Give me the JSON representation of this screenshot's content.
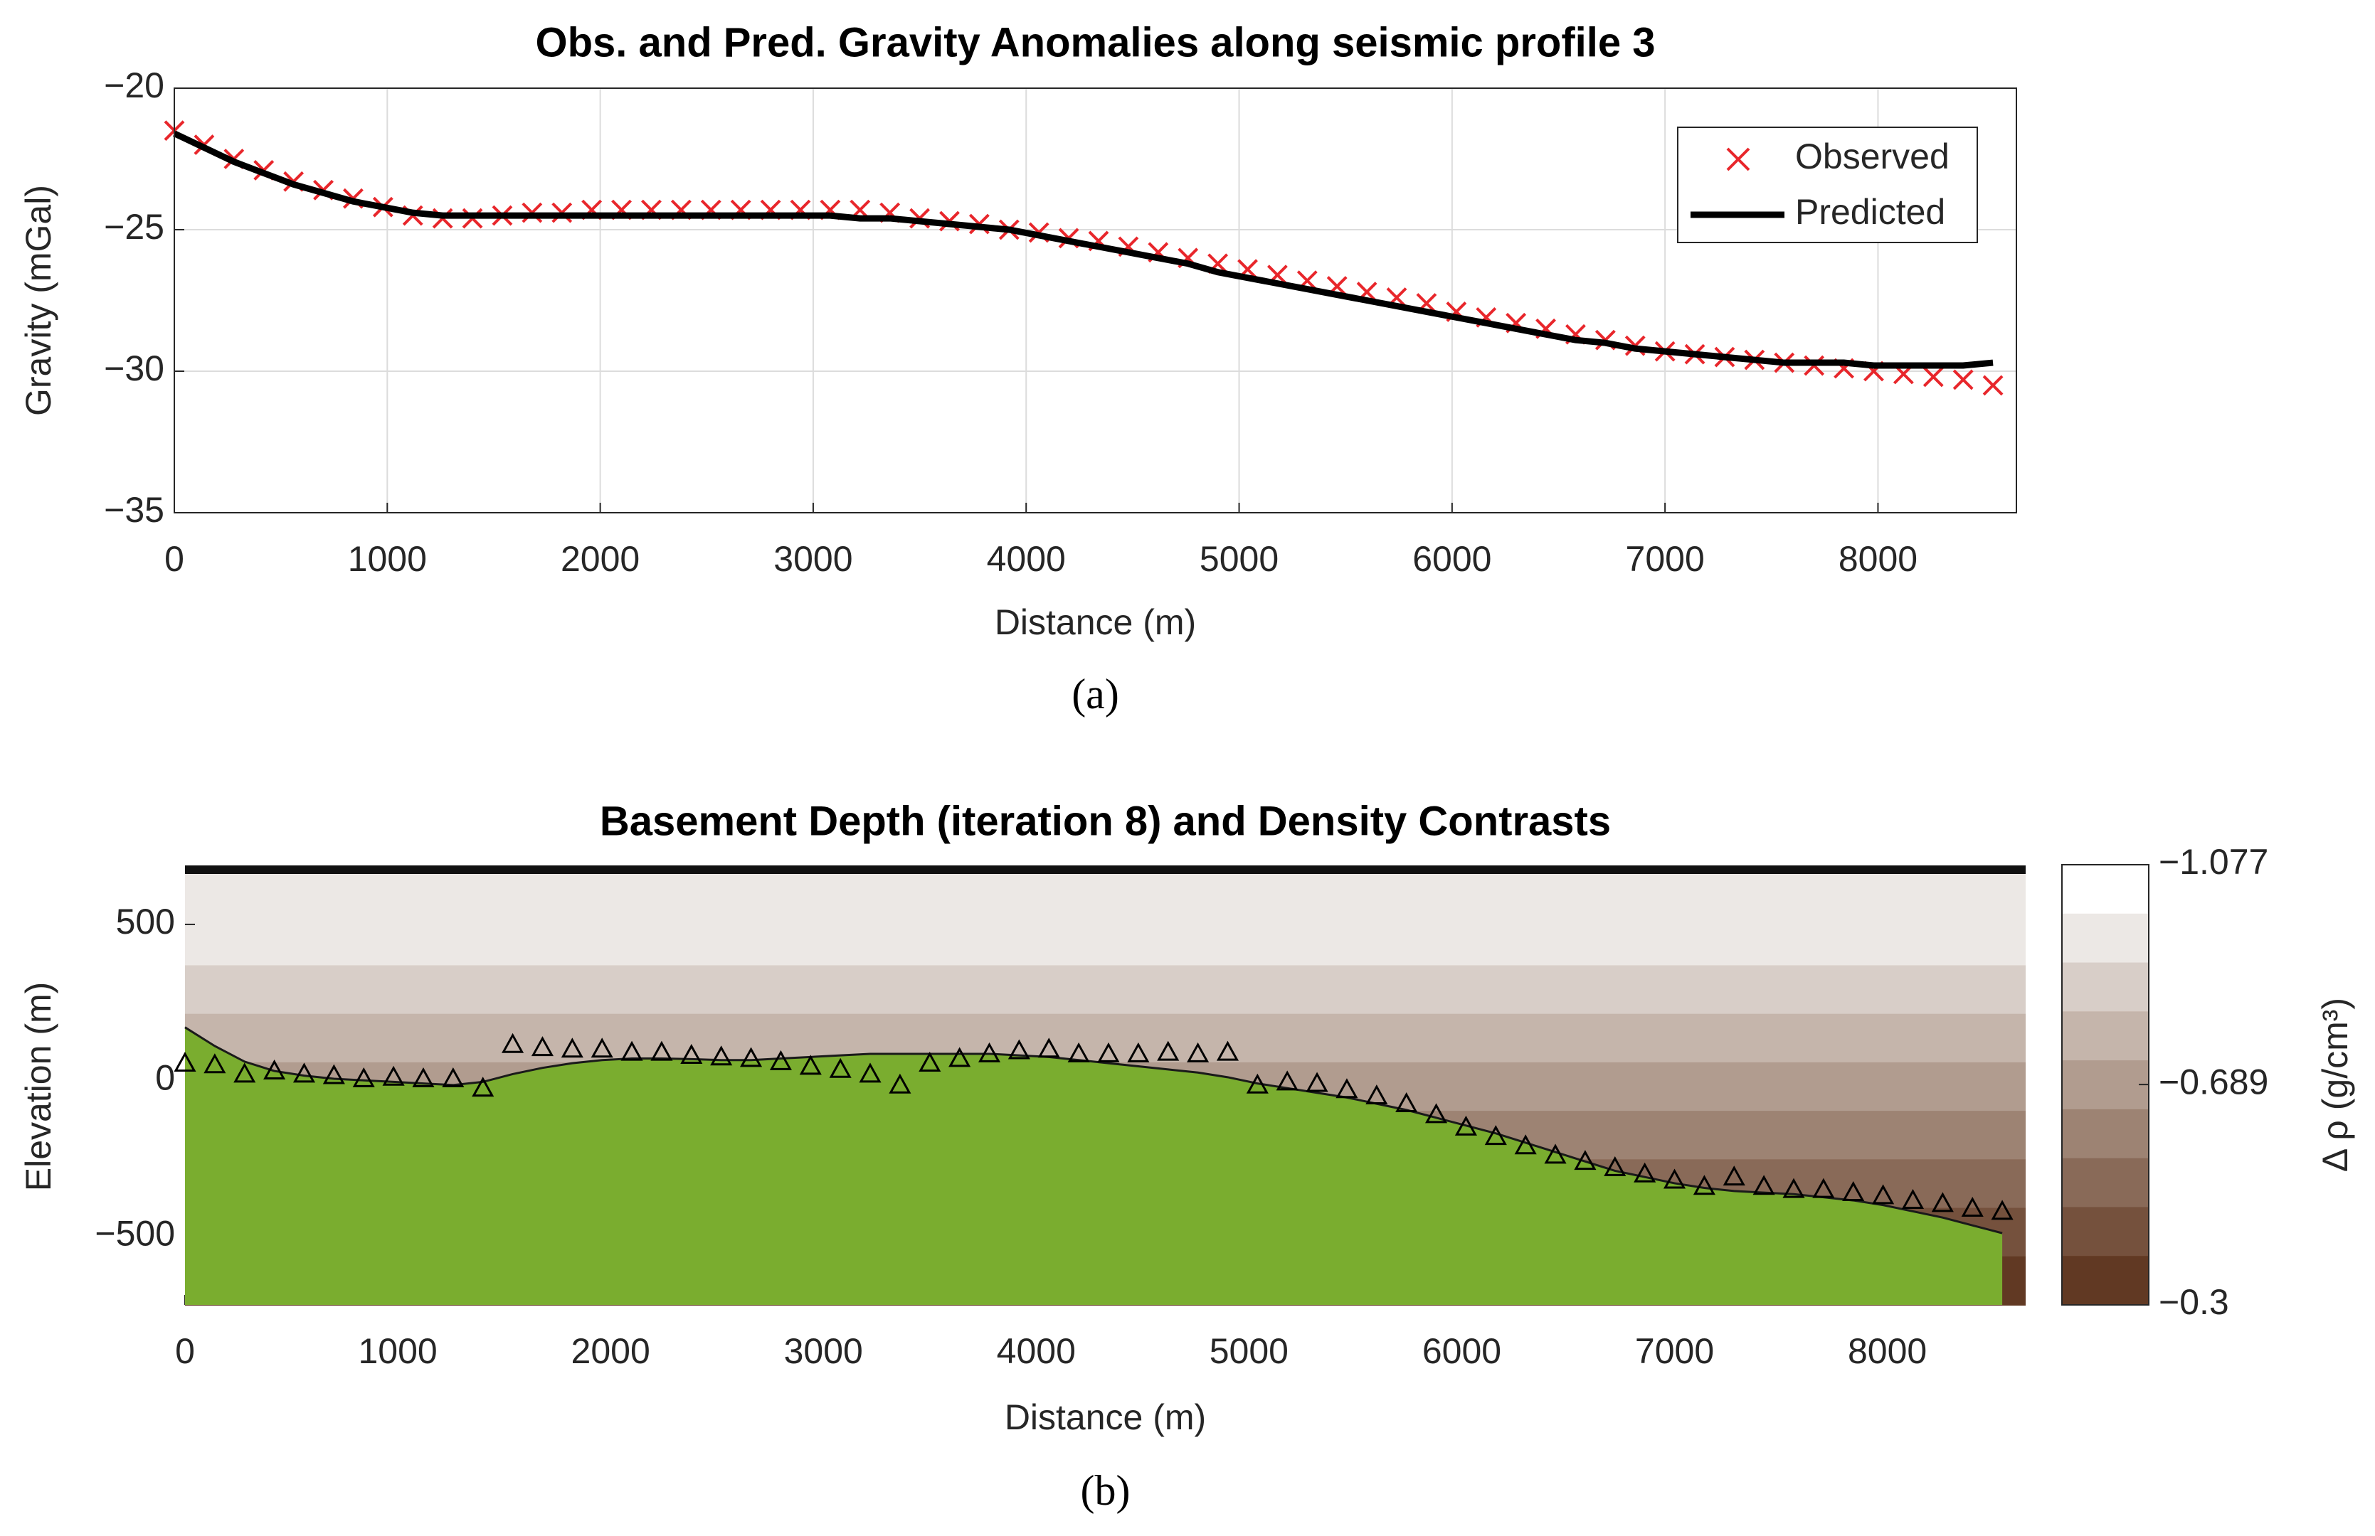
{
  "chart_data": [
    {
      "type": "line",
      "title": "Obs. and Pred. Gravity Anomalies along seismic profile 3",
      "xlabel": "Distance (m)",
      "ylabel": "Gravity (mGal)",
      "caption": "(a)",
      "x": [
        0,
        140,
        280,
        420,
        560,
        700,
        840,
        980,
        1120,
        1260,
        1400,
        1540,
        1680,
        1820,
        1960,
        2100,
        2240,
        2380,
        2520,
        2660,
        2800,
        2940,
        3080,
        3220,
        3360,
        3500,
        3640,
        3780,
        3920,
        4060,
        4200,
        4340,
        4480,
        4620,
        4760,
        4900,
        5040,
        5180,
        5320,
        5460,
        5600,
        5740,
        5880,
        6020,
        6160,
        6300,
        6440,
        6580,
        6720,
        6860,
        7000,
        7140,
        7280,
        7420,
        7560,
        7700,
        7840,
        7980,
        8120,
        8260,
        8400,
        8540
      ],
      "series": [
        {
          "name": "Observed",
          "color": "#e8262b",
          "marker": "x",
          "values": [
            -21.5,
            -22.0,
            -22.5,
            -22.9,
            -23.3,
            -23.6,
            -23.9,
            -24.2,
            -24.5,
            -24.6,
            -24.6,
            -24.5,
            -24.4,
            -24.4,
            -24.3,
            -24.3,
            -24.3,
            -24.3,
            -24.3,
            -24.3,
            -24.3,
            -24.3,
            -24.3,
            -24.3,
            -24.4,
            -24.6,
            -24.7,
            -24.8,
            -25.0,
            -25.1,
            -25.3,
            -25.4,
            -25.6,
            -25.8,
            -26.0,
            -26.2,
            -26.4,
            -26.6,
            -26.8,
            -27.0,
            -27.2,
            -27.4,
            -27.6,
            -27.9,
            -28.1,
            -28.3,
            -28.5,
            -28.7,
            -28.9,
            -29.1,
            -29.3,
            -29.4,
            -29.5,
            -29.6,
            -29.7,
            -29.8,
            -29.9,
            -30.0,
            -30.1,
            -30.2,
            -30.3,
            -30.5
          ]
        },
        {
          "name": "Predicted",
          "color": "#000000",
          "marker": "line",
          "values": [
            -21.6,
            -22.1,
            -22.6,
            -23.0,
            -23.4,
            -23.7,
            -24.0,
            -24.2,
            -24.4,
            -24.5,
            -24.5,
            -24.5,
            -24.5,
            -24.5,
            -24.5,
            -24.5,
            -24.5,
            -24.5,
            -24.5,
            -24.5,
            -24.5,
            -24.5,
            -24.5,
            -24.6,
            -24.6,
            -24.7,
            -24.8,
            -24.9,
            -25.0,
            -25.2,
            -25.4,
            -25.6,
            -25.8,
            -26.0,
            -26.2,
            -26.5,
            -26.7,
            -26.9,
            -27.1,
            -27.3,
            -27.5,
            -27.7,
            -27.9,
            -28.1,
            -28.3,
            -28.5,
            -28.7,
            -28.9,
            -29.0,
            -29.2,
            -29.3,
            -29.4,
            -29.5,
            -29.6,
            -29.7,
            -29.7,
            -29.7,
            -29.8,
            -29.8,
            -29.8,
            -29.8,
            -29.7
          ]
        }
      ],
      "xlim": [
        0,
        8650
      ],
      "xticks": [
        0,
        1000,
        2000,
        3000,
        4000,
        5000,
        6000,
        7000,
        8000
      ],
      "ylim": [
        -35,
        -20
      ],
      "yticks": [
        {
          "value": -35,
          "label": "−35"
        },
        {
          "value": -30,
          "label": "−30"
        },
        {
          "value": -25,
          "label": "−25"
        },
        {
          "value": -20,
          "label": "−20"
        }
      ],
      "grid": true,
      "legend": "northeast"
    },
    {
      "type": "area",
      "title": "Basement Depth (iteration 8) and Density Contrasts",
      "xlabel": "Distance (m)",
      "ylabel": "Elevation (m)",
      "caption": "(b)",
      "x": [
        0,
        140,
        280,
        420,
        560,
        700,
        840,
        980,
        1120,
        1260,
        1400,
        1540,
        1680,
        1820,
        1960,
        2100,
        2240,
        2380,
        2520,
        2660,
        2800,
        2940,
        3080,
        3220,
        3360,
        3500,
        3640,
        3780,
        3920,
        4060,
        4200,
        4340,
        4480,
        4620,
        4760,
        4900,
        5040,
        5180,
        5320,
        5460,
        5600,
        5740,
        5880,
        6020,
        6160,
        6300,
        6440,
        6580,
        6720,
        6860,
        7000,
        7140,
        7280,
        7420,
        7560,
        7700,
        7840,
        7980,
        8120,
        8260,
        8400,
        8540
      ],
      "series": [
        {
          "name": "Basement",
          "color": "#7aad2f",
          "marker": "area",
          "values": [
            170,
            110,
            60,
            30,
            15,
            5,
            0,
            -5,
            -10,
            -15,
            -5,
            20,
            40,
            55,
            65,
            70,
            70,
            68,
            65,
            65,
            70,
            75,
            80,
            85,
            85,
            85,
            85,
            85,
            80,
            75,
            65,
            55,
            45,
            35,
            25,
            10,
            -10,
            -25,
            -40,
            -55,
            -75,
            -95,
            -120,
            -145,
            -170,
            -200,
            -230,
            -260,
            -290,
            -310,
            -330,
            -345,
            -355,
            -360,
            -365,
            -375,
            -385,
            -400,
            -420,
            -440,
            -465,
            -490
          ]
        },
        {
          "name": "Seismic",
          "color": "#000000",
          "marker": "triangle",
          "values": [
            55,
            50,
            20,
            30,
            20,
            15,
            5,
            10,
            5,
            5,
            -25,
            115,
            105,
            100,
            100,
            90,
            90,
            80,
            75,
            70,
            60,
            45,
            35,
            20,
            -15,
            55,
            70,
            85,
            95,
            100,
            85,
            85,
            85,
            90,
            85,
            90,
            -15,
            -5,
            -10,
            -30,
            -50,
            -75,
            -110,
            -150,
            -180,
            -210,
            -240,
            -260,
            -280,
            -300,
            -320,
            -340,
            -310,
            -340,
            -350,
            -350,
            -360,
            -370,
            -385,
            -395,
            -410,
            -420
          ]
        }
      ],
      "xlim": [
        0,
        8650
      ],
      "xticks": [
        0,
        1000,
        2000,
        3000,
        4000,
        5000,
        6000,
        7000,
        8000
      ],
      "ylim": [
        -720,
        680
      ],
      "yticks": [
        {
          "value": -500,
          "label": "−500"
        },
        0,
        500
      ],
      "colorbar": {
        "label": "Δ ρ (g/cm³)",
        "lim": [
          -1.077,
          -0.3
        ],
        "ticks": [
          {
            "value": -1.077,
            "label": "−1.077"
          },
          {
            "value": -0.689,
            "label": "−0.689"
          },
          {
            "value": -0.3,
            "label": "−0.3"
          }
        ],
        "colors": [
          "#ffffff",
          "#ece8e5",
          "#d8cec8",
          "#c5b5ab",
          "#b19c8f",
          "#9d8373",
          "#896a58",
          "#75513d",
          "#613923"
        ]
      }
    }
  ]
}
